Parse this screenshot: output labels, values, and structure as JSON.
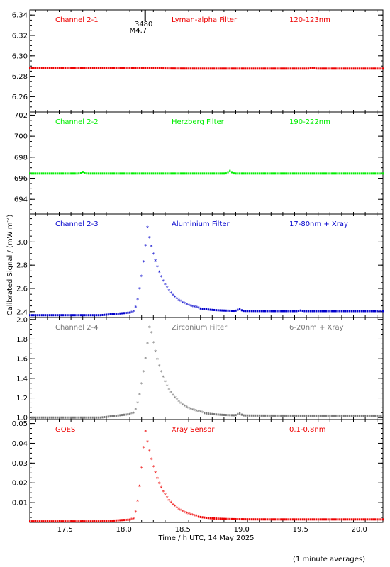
{
  "chart_data": {
    "type": "scatter",
    "xlabel": "Time / h UTC, 14 May 2025",
    "ylabel_prefix": "Calibrated Signal / (mW m",
    "ylabel_sup": "-2",
    "ylabel_suffix": ")",
    "footnote": "(1 minute averages)",
    "xlim": [
      17.2,
      20.2
    ],
    "x_ticks": [
      "17.5",
      "18.0",
      "18.5",
      "19.0",
      "19.5",
      "20.0"
    ],
    "flare_marker": {
      "x": 18.18,
      "label_top": "3480",
      "label_bottom": "M4.7"
    },
    "panels": [
      {
        "channel": "Channel 2-1",
        "filter": "Lyman-alpha Filter",
        "band": "120-123nm",
        "color": "#ee0000",
        "ylim": [
          6.245,
          6.345
        ],
        "y_ticks": [
          "6.26",
          "6.28",
          "6.30",
          "6.32",
          "6.34"
        ],
        "y_tick_values": [
          6.26,
          6.28,
          6.3,
          6.32,
          6.34
        ],
        "baseline_before": 6.288,
        "peak": 6.288,
        "baseline_after": 6.2875,
        "peak_time": 18.2,
        "rise_start": 18.08,
        "pre_start": 17.85,
        "pre_level": 6.288,
        "bumps": [
          {
            "x": 19.6,
            "dy": 0.0008
          }
        ]
      },
      {
        "channel": "Channel 2-2",
        "filter": "Herzberg Filter",
        "band": "190-222nm",
        "color": "#00ee00",
        "ylim": [
          692.6,
          702.3
        ],
        "y_ticks": [
          "694",
          "696",
          "698",
          "700",
          "702"
        ],
        "y_tick_values": [
          694,
          696,
          698,
          700,
          702
        ],
        "baseline_before": 696.45,
        "peak": 696.45,
        "baseline_after": 696.45,
        "peak_time": 18.2,
        "rise_start": 18.08,
        "pre_start": 17.85,
        "pre_level": 696.45,
        "bumps": [
          {
            "x": 17.65,
            "dy": 0.15
          },
          {
            "x": 18.9,
            "dy": 0.25
          }
        ]
      },
      {
        "channel": "Channel 2-3",
        "filter": "Aluminium Filter",
        "band": "17-80nm + Xray",
        "color": "#0000cc",
        "ylim": [
          2.35,
          3.24
        ],
        "y_ticks": [
          "2.4",
          "2.6",
          "2.8",
          "3.0"
        ],
        "y_tick_values": [
          2.4,
          2.6,
          2.8,
          3.0
        ],
        "baseline_before": 2.37,
        "peak": 3.12,
        "baseline_after": 2.405,
        "peak_time": 18.2,
        "rise_start": 18.08,
        "pre_start": 17.8,
        "pre_level": 2.395,
        "bumps": [
          {
            "x": 18.98,
            "dy": 0.015
          },
          {
            "x": 19.5,
            "dy": 0.005
          }
        ]
      },
      {
        "channel": "Channel 2-4",
        "filter": "Zirconium Filter",
        "band": "6-20nm + Xray",
        "color": "#777777",
        "ylim": [
          0.98,
          2.02
        ],
        "y_ticks": [
          "1.0",
          "1.2",
          "1.4",
          "1.6",
          "1.8",
          "2.0"
        ],
        "y_tick_values": [
          1.0,
          1.2,
          1.4,
          1.6,
          1.8,
          2.0
        ],
        "baseline_before": 1.0,
        "peak": 1.95,
        "baseline_after": 1.02,
        "peak_time": 18.22,
        "rise_start": 18.08,
        "pre_start": 17.8,
        "pre_level": 1.04,
        "bumps": [
          {
            "x": 18.98,
            "dy": 0.02
          }
        ]
      },
      {
        "channel": "GOES",
        "filter": "Xray Sensor",
        "band": "0.1-0.8nm",
        "color": "#ee0000",
        "ylim": [
          0.0,
          0.052
        ],
        "y_ticks": [
          "0.01",
          "0.02",
          "0.03",
          "0.04",
          "0.05"
        ],
        "y_tick_values": [
          0.01,
          0.02,
          0.03,
          0.04,
          0.05
        ],
        "baseline_before": 0.0005,
        "peak": 0.047,
        "baseline_after": 0.0015,
        "peak_time": 18.18,
        "rise_start": 18.08,
        "pre_start": 17.8,
        "pre_level": 0.0015,
        "bumps": []
      }
    ]
  }
}
